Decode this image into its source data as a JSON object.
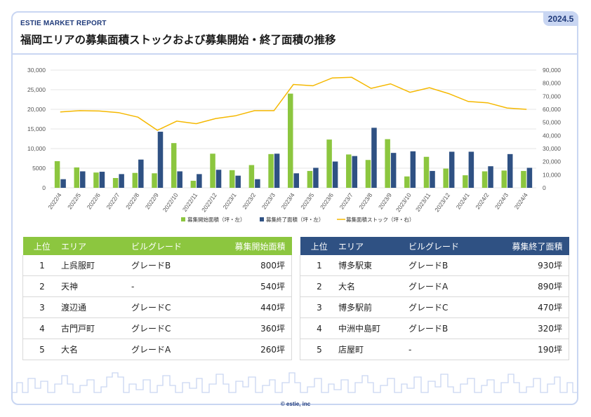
{
  "header": {
    "brand": "ESTIE MARKET REPORT",
    "date": "2024.5",
    "title": "福岡エリアの募集面積ストックおよび募集開始・終了面積の推移"
  },
  "chart_data": {
    "type": "bar",
    "categories": [
      "2022/4",
      "2022/5",
      "2022/6",
      "2022/7",
      "2022/8",
      "2022/9",
      "2022/10",
      "2022/11",
      "2022/12",
      "2023/1",
      "2023/2",
      "2023/3",
      "2023/4",
      "2023/5",
      "2023/6",
      "2023/7",
      "2023/8",
      "2023/9",
      "2023/10",
      "2023/11",
      "2023/12",
      "2024/1",
      "2024/2",
      "2024/3",
      "2024/4"
    ],
    "series": [
      {
        "name": "募集開始面積（坪・左）",
        "type": "bar",
        "axis": "left",
        "color": "#8cc63f",
        "values": [
          6800,
          5200,
          3900,
          2500,
          3800,
          3700,
          11400,
          1800,
          8700,
          4500,
          5800,
          8600,
          24000,
          4300,
          12300,
          8500,
          7100,
          12400,
          2900,
          7900,
          4900,
          3200,
          4200,
          4400,
          4300
        ]
      },
      {
        "name": "募集終了面積（坪・左）",
        "type": "bar",
        "axis": "left",
        "color": "#2f5183",
        "values": [
          2200,
          4200,
          4100,
          3500,
          7200,
          14300,
          4200,
          3500,
          4600,
          3100,
          2200,
          8700,
          3700,
          5100,
          6700,
          8100,
          15300,
          8900,
          9300,
          4300,
          9200,
          9200,
          5500,
          8600,
          5100
        ]
      },
      {
        "name": "募集面積ストック（坪・右）",
        "type": "line",
        "axis": "right",
        "color": "#f5b800",
        "values": [
          58000,
          59000,
          58700,
          57500,
          54000,
          44000,
          51000,
          49000,
          53000,
          55000,
          59000,
          59000,
          79000,
          78000,
          84000,
          84500,
          76000,
          79500,
          73000,
          76500,
          72000,
          66000,
          65000,
          61000,
          60000
        ]
      }
    ],
    "y_left": {
      "min": 0,
      "max": 30000,
      "ticks": [
        "0",
        "5000",
        "10,000",
        "15,000",
        "20,000",
        "25,000",
        "30,000"
      ]
    },
    "y_right": {
      "min": 0,
      "max": 90000,
      "ticks": [
        "0",
        "10,000",
        "20,000",
        "30,000",
        "40,000",
        "50,000",
        "60,000",
        "70,000",
        "80,000",
        "90,000"
      ]
    },
    "grid": true,
    "legend_position": "bottom"
  },
  "tables": {
    "start": {
      "headers": [
        "上位",
        "エリア",
        "ビルグレード",
        "募集開始面積"
      ],
      "rows": [
        [
          "1",
          "上呉服町",
          "グレードB",
          "800坪"
        ],
        [
          "2",
          "天神",
          "-",
          "540坪"
        ],
        [
          "3",
          "渡辺通",
          "グレードC",
          "440坪"
        ],
        [
          "4",
          "古門戸町",
          "グレードC",
          "360坪"
        ],
        [
          "5",
          "大名",
          "グレードA",
          "260坪"
        ]
      ]
    },
    "end": {
      "headers": [
        "上位",
        "エリア",
        "ビルグレード",
        "募集終了面積"
      ],
      "rows": [
        [
          "1",
          "博多駅東",
          "グレードB",
          "930坪"
        ],
        [
          "2",
          "大名",
          "グレードA",
          "890坪"
        ],
        [
          "3",
          "博多駅前",
          "グレードC",
          "470坪"
        ],
        [
          "4",
          "中洲中島町",
          "グレードB",
          "320坪"
        ],
        [
          "5",
          "店屋町",
          "-",
          "190坪"
        ]
      ]
    }
  },
  "footer": {
    "copyright": "© estie, inc"
  }
}
